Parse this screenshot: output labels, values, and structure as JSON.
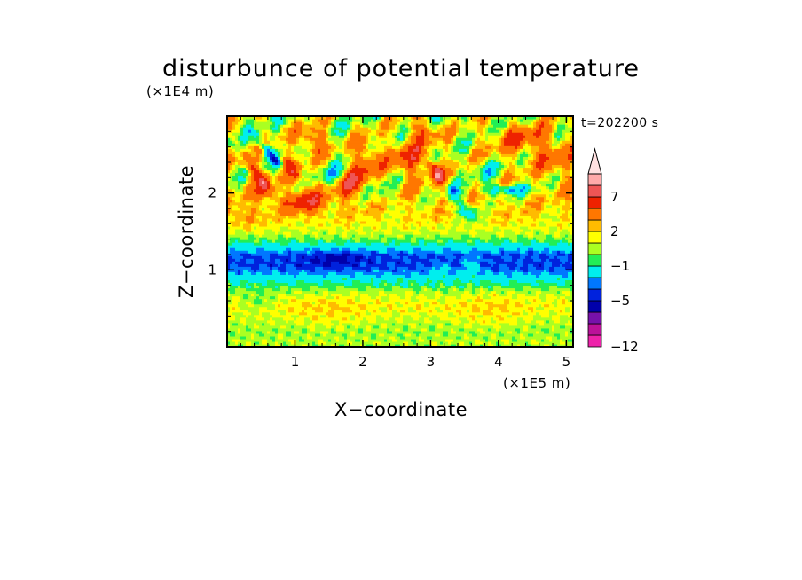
{
  "chart_data": {
    "type": "heatmap",
    "title": "disturbunce of potential temperature",
    "xlabel": "X−coordinate",
    "ylabel": "Z−coordinate",
    "x_unit": "(×1E5 m)",
    "y_unit": "(×1E4 m)",
    "time_label": "t=202200 s",
    "xlim": [
      0,
      5.1
    ],
    "ylim": [
      0,
      3.0
    ],
    "x_ticks": [
      1,
      2,
      3,
      4,
      5
    ],
    "y_ticks": [
      1,
      2
    ],
    "x_tick_labels": [
      "1",
      "2",
      "3",
      "4",
      "5"
    ],
    "y_tick_labels": [
      "1",
      "2"
    ],
    "colorbar": {
      "levels": [
        -12,
        -11,
        -9,
        -7,
        -5,
        -4,
        -3,
        -1,
        0,
        1,
        2,
        3,
        5,
        7,
        9,
        11
      ],
      "labels": [
        {
          "value": 7,
          "text": "7"
        },
        {
          "value": 2,
          "text": "2"
        },
        {
          "value": -1,
          "text": "−1"
        },
        {
          "value": -5,
          "text": "−5"
        },
        {
          "value": -12,
          "text": "−12"
        }
      ],
      "colors": [
        "#ee22aa",
        "#bb1199",
        "#7711aa",
        "#0000aa",
        "#0022dd",
        "#0077ff",
        "#00eeee",
        "#22ee55",
        "#aaff22",
        "#ffff00",
        "#ffbb00",
        "#ff7700",
        "#ee2200",
        "#ee5555",
        "#ffaaaa"
      ],
      "extend_top_color": "#ffe0e0"
    },
    "bands": [
      {
        "z": 0.0,
        "value": 0.3
      },
      {
        "z": 0.05,
        "value": 0.7
      },
      {
        "z": 0.2,
        "value": 0.3
      },
      {
        "z": 0.35,
        "value": 0.8
      },
      {
        "z": 0.55,
        "value": 1.5
      },
      {
        "z": 0.7,
        "value": 0.8
      },
      {
        "z": 0.8,
        "value": -0.5
      },
      {
        "z": 0.88,
        "value": -1.5
      },
      {
        "z": 0.95,
        "value": -3.0
      },
      {
        "z": 1.05,
        "value": -4.2
      },
      {
        "z": 1.2,
        "value": -4.0
      },
      {
        "z": 1.3,
        "value": -2.2
      },
      {
        "z": 1.38,
        "value": -0.4
      },
      {
        "z": 1.48,
        "value": 0.8
      },
      {
        "z": 1.6,
        "value": 1.5
      },
      {
        "z": 1.75,
        "value": 2.0
      },
      {
        "z": 1.95,
        "value": 1.8
      },
      {
        "z": 2.2,
        "value": 1.5
      },
      {
        "z": 2.5,
        "value": 1.2
      },
      {
        "z": 2.8,
        "value": 1.0
      },
      {
        "z": 3.0,
        "value": 0.8
      }
    ],
    "features": [
      {
        "x": 0.35,
        "z": 2.35,
        "amp": 5.5,
        "rx": 0.07,
        "rz": 0.22,
        "tilt": -0.9
      },
      {
        "x": 0.65,
        "z": 2.5,
        "amp": -5.0,
        "rx": 0.06,
        "rz": 0.2,
        "tilt": -0.9
      },
      {
        "x": 0.15,
        "z": 2.55,
        "amp": -4.0,
        "rx": 0.05,
        "rz": 0.18,
        "tilt": -0.9
      },
      {
        "x": 0.55,
        "z": 2.05,
        "amp": 3.5,
        "rx": 0.08,
        "rz": 0.12,
        "tilt": 0.0
      },
      {
        "x": 0.95,
        "z": 2.3,
        "amp": 4.0,
        "rx": 0.1,
        "rz": 0.15,
        "tilt": -0.6
      },
      {
        "x": 1.15,
        "z": 1.9,
        "amp": 4.5,
        "rx": 0.2,
        "rz": 0.1,
        "tilt": 0.0
      },
      {
        "x": 1.25,
        "z": 2.7,
        "amp": 4.0,
        "rx": 0.15,
        "rz": 0.12,
        "tilt": 0.0
      },
      {
        "x": 1.55,
        "z": 2.25,
        "amp": -2.5,
        "rx": 0.15,
        "rz": 0.1,
        "tilt": 0.0
      },
      {
        "x": 1.85,
        "z": 2.15,
        "amp": 4.5,
        "rx": 0.15,
        "rz": 0.15,
        "tilt": 0.5
      },
      {
        "x": 2.05,
        "z": 2.5,
        "amp": 3.5,
        "rx": 0.12,
        "rz": 0.15,
        "tilt": 0.0
      },
      {
        "x": 2.3,
        "z": 2.0,
        "amp": -2.0,
        "rx": 0.12,
        "rz": 0.1,
        "tilt": 0.0
      },
      {
        "x": 2.65,
        "z": 2.45,
        "amp": 4.0,
        "rx": 0.2,
        "rz": 0.15,
        "tilt": 0.0
      },
      {
        "x": 2.9,
        "z": 2.8,
        "amp": 3.5,
        "rx": 0.15,
        "rz": 0.12,
        "tilt": 0.0
      },
      {
        "x": 3.1,
        "z": 2.25,
        "amp": 7.5,
        "rx": 0.07,
        "rz": 0.12,
        "tilt": -0.6
      },
      {
        "x": 3.3,
        "z": 2.05,
        "amp": -4.5,
        "rx": 0.08,
        "rz": 0.12,
        "tilt": -0.7
      },
      {
        "x": 3.55,
        "z": 1.75,
        "amp": -4.0,
        "rx": 0.1,
        "rz": 0.08,
        "tilt": -0.5
      },
      {
        "x": 3.8,
        "z": 2.3,
        "amp": -2.0,
        "rx": 0.15,
        "rz": 0.1,
        "tilt": 0.0
      },
      {
        "x": 4.1,
        "z": 2.05,
        "amp": -4.5,
        "rx": 0.25,
        "rz": 0.05,
        "tilt": 0.0
      },
      {
        "x": 4.4,
        "z": 2.7,
        "amp": 3.5,
        "rx": 0.35,
        "rz": 0.15,
        "tilt": 0.0
      },
      {
        "x": 4.85,
        "z": 2.4,
        "amp": 2.5,
        "rx": 0.2,
        "rz": 0.15,
        "tilt": 0.0
      },
      {
        "x": 0.2,
        "z": 1.7,
        "amp": 1.2,
        "rx": 0.25,
        "rz": 0.12,
        "tilt": 0.0
      },
      {
        "x": 1.6,
        "z": 1.15,
        "amp": -1.5,
        "rx": 0.3,
        "rz": 0.07,
        "tilt": 0.0
      },
      {
        "x": 3.6,
        "z": 1.05,
        "amp": 2.5,
        "rx": 0.08,
        "rz": 0.08,
        "tilt": 0.0
      },
      {
        "x": 3.15,
        "z": 1.0,
        "amp": 2.0,
        "rx": 0.08,
        "rz": 0.06,
        "tilt": 0.0
      },
      {
        "x": 1.5,
        "z": 0.45,
        "amp": 0.8,
        "rx": 0.4,
        "rz": 0.15,
        "tilt": 0.0
      },
      {
        "x": 3.9,
        "z": 0.45,
        "amp": 0.8,
        "rx": 0.35,
        "rz": 0.15,
        "tilt": 0.0
      },
      {
        "x": 0.45,
        "z": 0.6,
        "amp": -1.2,
        "rx": 0.2,
        "rz": 0.08,
        "tilt": 0.0
      }
    ]
  }
}
